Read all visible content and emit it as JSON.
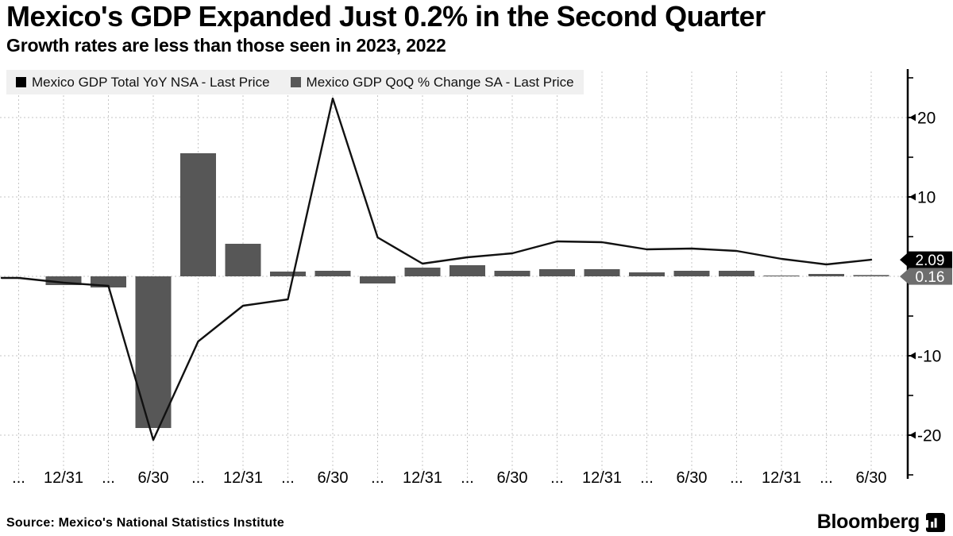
{
  "header": {
    "title": "Mexico's GDP Expanded Just 0.2% in the Second Quarter",
    "subtitle": "Growth rates are less than those seen in 2023, 2022"
  },
  "legend": {
    "items": [
      {
        "label": "Mexico GDP Total YoY NSA - Last Price",
        "color": "#000000"
      },
      {
        "label": "Mexico GDP QoQ % Change SA - Last Price",
        "color": "#575757"
      }
    ]
  },
  "chart_data": {
    "type": "combo",
    "title": "Mexico's GDP Expanded Just 0.2% in the Second Quarter",
    "x_labels": [
      "...",
      "12/31",
      "...",
      "6/30",
      "...",
      "12/31",
      "...",
      "6/30",
      "...",
      "12/31",
      "...",
      "6/30",
      "...",
      "12/31",
      "...",
      "6/30",
      "...",
      "12/31",
      "...",
      "6/30"
    ],
    "series": [
      {
        "name": "Mexico GDP Total YoY NSA - Last Price",
        "type": "line",
        "color": "#111111",
        "values": [
          -0.2,
          -0.8,
          -1.2,
          -20.6,
          -8.2,
          -3.7,
          -2.9,
          22.4,
          4.9,
          1.6,
          2.4,
          2.9,
          4.4,
          4.3,
          3.4,
          3.5,
          3.2,
          2.2,
          1.5,
          2.09
        ]
      },
      {
        "name": "Mexico GDP QoQ % Change SA - Last Price",
        "type": "bar",
        "color": "#575757",
        "values": [
          0,
          -1.1,
          -1.4,
          -19.1,
          15.5,
          4.1,
          0.6,
          0.7,
          -0.9,
          1.1,
          1.4,
          0.7,
          0.9,
          0.9,
          0.5,
          0.7,
          0.7,
          0.05,
          0.3,
          0.16
        ]
      }
    ],
    "y_ticks_major": [
      20,
      10,
      -10,
      -20
    ],
    "y_ticks_minor": [
      25,
      15,
      5,
      -5,
      -15,
      -25
    ],
    "ylim": [
      -25,
      25
    ],
    "grid": "dashed",
    "grid_color": "#c6c6c6",
    "legend_position": "top-left",
    "last_price_flags": [
      {
        "value": "2.09",
        "bg": "#000000",
        "text_color": "#ffffff"
      },
      {
        "value": "0.16",
        "bg": "#6e6e6e",
        "text_color": "#ffffff"
      }
    ]
  },
  "footer": {
    "source": "Source: Mexico's National Statistics Institute",
    "brand": "Bloomberg"
  }
}
